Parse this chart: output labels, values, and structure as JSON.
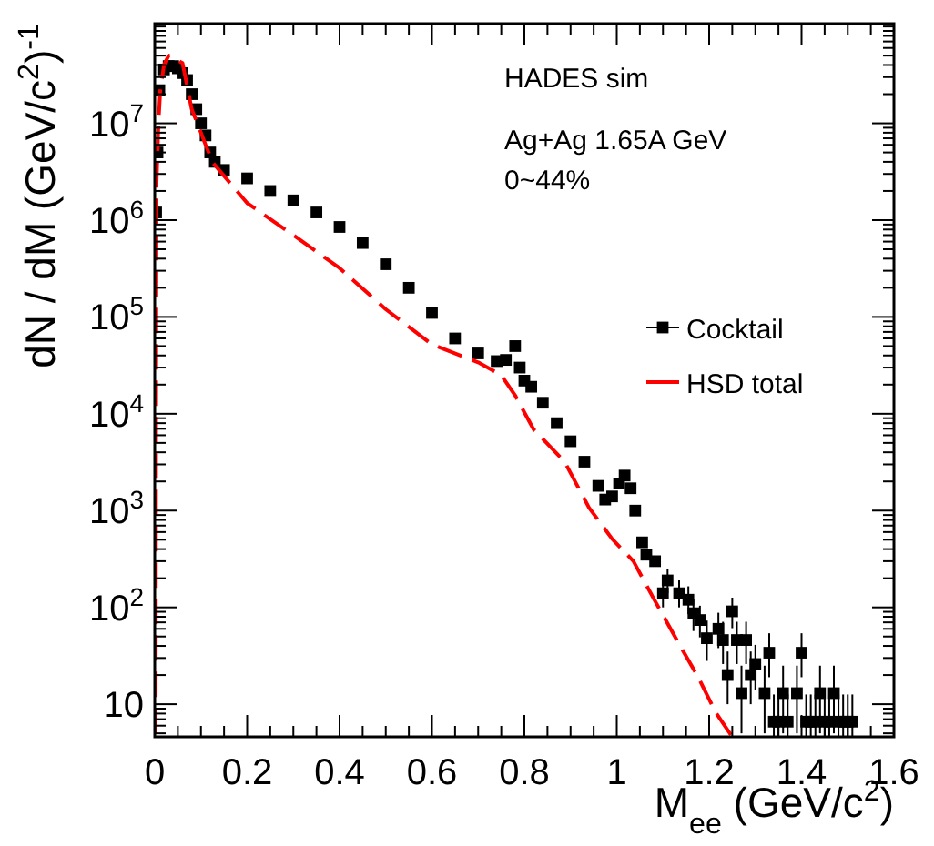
{
  "chart_data": {
    "type": "scatter",
    "xlabel": "M$_{ee}$ (GeV/c$^{2}$)",
    "ylabel": "dN / dM (GeV/c$^{2}$)$^{-1}$",
    "annotations": [
      "HADES sim",
      "Ag+Ag 1.65A GeV",
      "0~44%"
    ],
    "log": "y",
    "xlim": [
      0,
      1.6
    ],
    "ylim": [
      4.6,
      107000000
    ],
    "xticks": [
      0,
      {
        "value": 0.05,
        "label": null
      },
      {
        "value": 0.1,
        "label": null
      },
      {
        "value": 0.15,
        "label": null
      },
      0.2,
      {
        "value": 0.25,
        "label": null
      },
      {
        "value": 0.3,
        "label": null
      },
      {
        "value": 0.35,
        "label": null
      },
      0.4,
      {
        "value": 0.45,
        "label": null
      },
      {
        "value": 0.5,
        "label": null
      },
      {
        "value": 0.55,
        "label": null
      },
      0.6,
      {
        "value": 0.65,
        "label": null
      },
      {
        "value": 0.7,
        "label": null
      },
      {
        "value": 0.75,
        "label": null
      },
      0.8,
      {
        "value": 0.85,
        "label": null
      },
      {
        "value": 0.9,
        "label": null
      },
      {
        "value": 0.95,
        "label": null
      },
      1,
      {
        "value": 1.05,
        "label": null
      },
      {
        "value": 1.1,
        "label": null
      },
      {
        "value": 1.15,
        "label": null
      },
      1.2,
      {
        "value": 1.25,
        "label": null
      },
      {
        "value": 1.3,
        "label": null
      },
      {
        "value": 1.35,
        "label": null
      },
      1.4,
      {
        "value": 1.45,
        "label": null
      },
      {
        "value": 1.5,
        "label": null
      },
      {
        "value": 1.55,
        "label": null
      },
      1.6
    ],
    "yticks": [
      {
        "value": 5,
        "label": null
      },
      {
        "value": 6,
        "label": null
      },
      {
        "value": 7,
        "label": null
      },
      {
        "value": 8,
        "label": null
      },
      {
        "value": 9,
        "label": null
      },
      10,
      {
        "value": 20,
        "label": null
      },
      {
        "value": 30,
        "label": null
      },
      {
        "value": 40,
        "label": null
      },
      {
        "value": 50,
        "label": null
      },
      {
        "value": 60,
        "label": null
      },
      {
        "value": 70,
        "label": null
      },
      {
        "value": 80,
        "label": null
      },
      {
        "value": 90,
        "label": null
      },
      {
        "value": 100,
        "label": "10$^{2}$"
      },
      {
        "value": 200,
        "label": null
      },
      {
        "value": 300,
        "label": null
      },
      {
        "value": 400,
        "label": null
      },
      {
        "value": 500,
        "label": null
      },
      {
        "value": 600,
        "label": null
      },
      {
        "value": 700,
        "label": null
      },
      {
        "value": 800,
        "label": null
      },
      {
        "value": 900,
        "label": null
      },
      {
        "value": 1000,
        "label": "10$^{3}$"
      },
      {
        "value": 2000,
        "label": null
      },
      {
        "value": 3000,
        "label": null
      },
      {
        "value": 4000,
        "label": null
      },
      {
        "value": 5000,
        "label": null
      },
      {
        "value": 6000,
        "label": null
      },
      {
        "value": 7000,
        "label": null
      },
      {
        "value": 8000,
        "label": null
      },
      {
        "value": 9000,
        "label": null
      },
      {
        "value": 10000,
        "label": "10$^{4}$"
      },
      {
        "value": 20000,
        "label": null
      },
      {
        "value": 30000,
        "label": null
      },
      {
        "value": 40000,
        "label": null
      },
      {
        "value": 50000,
        "label": null
      },
      {
        "value": 60000,
        "label": null
      },
      {
        "value": 70000,
        "label": null
      },
      {
        "value": 80000,
        "label": null
      },
      {
        "value": 90000,
        "label": null
      },
      {
        "value": 100000,
        "label": "10$^{5}$"
      },
      {
        "value": 200000,
        "label": null
      },
      {
        "value": 300000,
        "label": null
      },
      {
        "value": 400000,
        "label": null
      },
      {
        "value": 500000,
        "label": null
      },
      {
        "value": 600000,
        "label": null
      },
      {
        "value": 700000,
        "label": null
      },
      {
        "value": 800000,
        "label": null
      },
      {
        "value": 900000,
        "label": null
      },
      {
        "value": 1000000,
        "label": "10$^{6}$"
      },
      {
        "value": 2000000,
        "label": null
      },
      {
        "value": 3000000,
        "label": null
      },
      {
        "value": 4000000,
        "label": null
      },
      {
        "value": 5000000,
        "label": null
      },
      {
        "value": 6000000,
        "label": null
      },
      {
        "value": 7000000,
        "label": null
      },
      {
        "value": 8000000,
        "label": null
      },
      {
        "value": 9000000,
        "label": null
      },
      {
        "value": 10000000,
        "label": "10$^{7}$"
      },
      {
        "value": 20000000,
        "label": null
      },
      {
        "value": 30000000,
        "label": null
      },
      {
        "value": 40000000,
        "label": null
      },
      {
        "value": 50000000,
        "label": null
      },
      {
        "value": 60000000,
        "label": null
      },
      {
        "value": 70000000,
        "label": null
      },
      {
        "value": 80000000,
        "label": null
      },
      {
        "value": 90000000,
        "label": null
      },
      {
        "value": 100000000,
        "label": null
      }
    ],
    "legend": "right",
    "grid": false,
    "series": [
      {
        "name": "Cocktail",
        "marker": "square",
        "color": "#000000",
        "x": [
          0.003,
          0.006,
          0.01,
          0.02,
          0.03,
          0.04,
          0.05,
          0.06,
          0.07,
          0.08,
          0.09,
          0.1,
          0.11,
          0.12,
          0.13,
          0.15,
          0.2,
          0.25,
          0.3,
          0.35,
          0.4,
          0.45,
          0.5,
          0.55,
          0.6,
          0.65,
          0.7,
          0.74,
          0.76,
          0.78,
          0.79,
          0.8,
          0.815,
          0.84,
          0.87,
          0.9,
          0.93,
          0.96,
          0.975,
          0.99,
          1.005,
          1.017,
          1.03,
          1.04,
          1.055,
          1.064,
          1.083,
          1.1,
          1.11,
          1.135,
          1.155,
          1.166,
          1.18,
          1.195,
          1.22,
          1.23,
          1.24,
          1.25,
          1.26,
          1.27,
          1.28,
          1.29,
          1.3,
          1.32,
          1.33,
          1.34,
          1.35,
          1.36,
          1.37,
          1.39,
          1.4,
          1.41,
          1.42,
          1.43,
          1.44,
          1.45,
          1.46,
          1.47,
          1.48,
          1.49,
          1.5,
          1.51
        ],
        "values": [
          1200000,
          5000000,
          22000000,
          36000000,
          39000000,
          39000000,
          37000000,
          33000000,
          28000000,
          20000000,
          14000000,
          10000000,
          7500000,
          5000000,
          4000000,
          3300000,
          2700000,
          2000000,
          1600000,
          1200000,
          850000,
          580000,
          350000,
          200000,
          110000,
          60000,
          42000,
          35000,
          36000,
          50000,
          30000,
          22000,
          19000,
          13000,
          8000,
          5200,
          3200,
          1800,
          1300,
          1400,
          1900,
          2300,
          1700,
          1000,
          470,
          350,
          300,
          140,
          190,
          140,
          120,
          87,
          74,
          48,
          60,
          46,
          20,
          91,
          46,
          13,
          46,
          20,
          26,
          13,
          34,
          6.6,
          6.6,
          13,
          6.6,
          13,
          34,
          6.6,
          6.6,
          6.6,
          13,
          6.6,
          6.6,
          13,
          6.6,
          6.6,
          6.6,
          6.6
        ],
        "errors": [
          null,
          null,
          null,
          null,
          null,
          null,
          null,
          null,
          null,
          null,
          null,
          null,
          null,
          null,
          null,
          null,
          null,
          null,
          null,
          null,
          null,
          null,
          null,
          null,
          null,
          null,
          null,
          null,
          null,
          null,
          null,
          null,
          null,
          null,
          null,
          null,
          null,
          null,
          null,
          null,
          null,
          null,
          null,
          null,
          null,
          null,
          null,
          [
            100,
            190
          ],
          [
            140,
            250
          ],
          [
            100,
            190
          ],
          [
            85,
            165
          ],
          [
            57,
            122
          ],
          [
            49,
            104
          ],
          [
            28,
            73
          ],
          [
            38,
            88
          ],
          [
            26,
            71
          ],
          [
            10,
            35
          ],
          [
            61,
            126
          ],
          [
            26,
            71
          ],
          [
            5,
            25
          ],
          [
            26,
            71
          ],
          [
            10,
            35
          ],
          [
            14,
            41
          ],
          [
            5,
            25
          ],
          [
            19,
            54
          ],
          [
            4.6,
            12.6
          ],
          [
            4.6,
            12.6
          ],
          [
            5,
            25
          ],
          [
            4.6,
            12.6
          ],
          [
            5,
            25
          ],
          [
            19,
            54
          ],
          [
            4.6,
            12.6
          ],
          [
            4.6,
            12.6
          ],
          [
            4.6,
            12.6
          ],
          [
            5,
            25
          ],
          [
            4.6,
            12.6
          ],
          [
            4.6,
            12.6
          ],
          [
            5,
            25
          ],
          [
            4.6,
            12.6
          ],
          [
            4.6,
            12.6
          ],
          [
            4.6,
            12.6
          ],
          [
            4.6,
            12.6
          ]
        ]
      },
      {
        "name": "HSD total",
        "type": "line",
        "line_style": "dashed",
        "marker": "none",
        "color": "#ff0000",
        "x": [
          0.002,
          0.003,
          0.004,
          0.008,
          0.012,
          0.02,
          0.03,
          0.045,
          0.06,
          0.08,
          0.1,
          0.11,
          0.126,
          0.2,
          0.3,
          0.4,
          0.5,
          0.6,
          0.7,
          0.75,
          0.78,
          0.82,
          0.887,
          0.94,
          0.99,
          1.036,
          1.08,
          1.13,
          1.175,
          1.215,
          1.25
        ],
        "values": [
          5,
          10000,
          2500000,
          10000000,
          22000000,
          40000000,
          50000000,
          46000000,
          42000000,
          14000000,
          8000000,
          6000000,
          3900000,
          1500000,
          700000,
          320000,
          120000,
          52000,
          34000,
          25000,
          15500,
          6900,
          3200,
          1070,
          510,
          300,
          123,
          46,
          19.5,
          8.1,
          4.6
        ]
      }
    ]
  }
}
